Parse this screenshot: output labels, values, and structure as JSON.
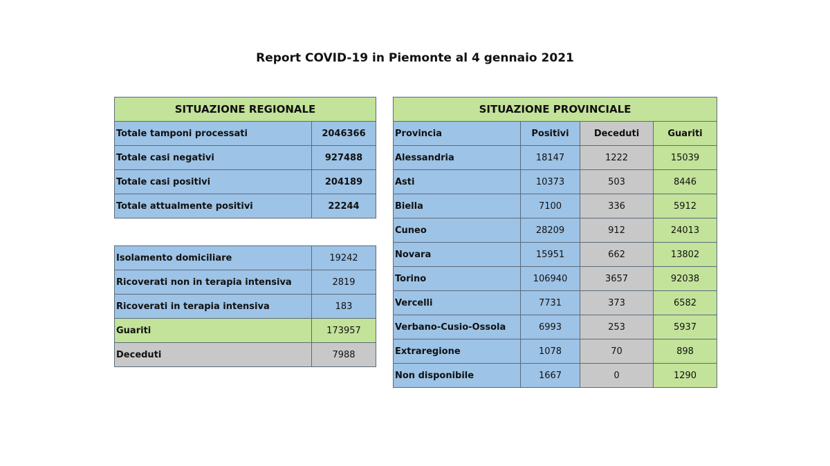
{
  "title": "Report COVID-19 in Piemonte al 4 gennaio 2021",
  "regional": {
    "header": "SITUAZIONE REGIONALE",
    "totals": [
      {
        "label": "Totale tamponi processati",
        "value": "2046366"
      },
      {
        "label": "Totale casi negativi",
        "value": "927488"
      },
      {
        "label": "Totale casi positivi",
        "value": "204189"
      },
      {
        "label": "Totale attualmente positivi",
        "value": "22244"
      }
    ],
    "details": [
      {
        "label": "Isolamento domiciliare",
        "value": "19242",
        "color": "#9dc3e6"
      },
      {
        "label": "Ricoverati non in terapia intensiva",
        "value": "2819",
        "color": "#9dc3e6"
      },
      {
        "label": "Ricoverati in terapia intensiva",
        "value": "183",
        "color": "#9dc3e6"
      },
      {
        "label": "Guariti",
        "value": "173957",
        "color": "#c3e29a"
      },
      {
        "label": "Deceduti",
        "value": "7988",
        "color": "#c8c8c8"
      }
    ]
  },
  "provincial": {
    "header": "SITUAZIONE PROVINCIALE",
    "columns": [
      "Provincia",
      "Positivi",
      "Deceduti",
      "Guariti"
    ],
    "rows": [
      [
        "Alessandria",
        "18147",
        "1222",
        "15039"
      ],
      [
        "Asti",
        "10373",
        "503",
        "8446"
      ],
      [
        "Biella",
        "7100",
        "336",
        "5912"
      ],
      [
        "Cuneo",
        "28209",
        "912",
        "24013"
      ],
      [
        "Novara",
        "15951",
        "662",
        "13802"
      ],
      [
        "Torino",
        "106940",
        "3657",
        "92038"
      ],
      [
        "Vercelli",
        "7731",
        "373",
        "6582"
      ],
      [
        "Verbano-Cusio-Ossola",
        "6993",
        "253",
        "5937"
      ],
      [
        "Extraregione",
        "1078",
        "70",
        "898"
      ],
      [
        "Non disponibile",
        "1667",
        "0",
        "1290"
      ]
    ]
  }
}
